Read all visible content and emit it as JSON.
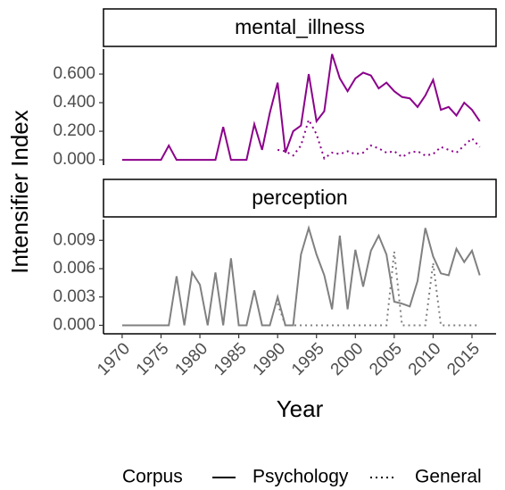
{
  "ylabel": "Intensifier Index",
  "xlabel": "Year",
  "legend": {
    "title": "Corpus"
  },
  "chart_data": [
    {
      "type": "line",
      "title": "mental_illness",
      "x": [
        1970,
        1971,
        1972,
        1973,
        1974,
        1975,
        1976,
        1977,
        1978,
        1979,
        1980,
        1981,
        1982,
        1983,
        1984,
        1985,
        1986,
        1987,
        1988,
        1989,
        1990,
        1991,
        1992,
        1993,
        1994,
        1995,
        1996,
        1997,
        1998,
        1999,
        2000,
        2001,
        2002,
        2003,
        2004,
        2005,
        2006,
        2007,
        2008,
        2009,
        2010,
        2011,
        2012,
        2013,
        2014,
        2015,
        2016
      ],
      "series": [
        {
          "name": "Psychology",
          "color": "#8b008b",
          "dash": "solid",
          "values": [
            0,
            0,
            0,
            0,
            0,
            0,
            0.1,
            0,
            0,
            0,
            0,
            0,
            0,
            0.23,
            0,
            0,
            0,
            0.25,
            0.07,
            0.33,
            0.54,
            0.05,
            0.2,
            0.24,
            0.6,
            0.27,
            0.34,
            0.74,
            0.57,
            0.48,
            0.57,
            0.61,
            0.59,
            0.5,
            0.54,
            0.48,
            0.44,
            0.43,
            0.37,
            0.45,
            0.56,
            0.35,
            0.37,
            0.31,
            0.4,
            0.35,
            0.27
          ]
        },
        {
          "name": "General",
          "color": "#8b008b",
          "dash": "dotted",
          "values": [
            null,
            null,
            null,
            null,
            null,
            null,
            null,
            null,
            null,
            null,
            null,
            null,
            null,
            null,
            null,
            null,
            null,
            null,
            null,
            null,
            0.07,
            0.06,
            0.03,
            0.1,
            0.28,
            0.18,
            0.01,
            0.05,
            0.04,
            0.06,
            0.04,
            0.05,
            0.1,
            0.08,
            0.05,
            0.06,
            0.02,
            0.05,
            0.06,
            0.03,
            0.04,
            0.09,
            0.07,
            0.05,
            0.1,
            0.15,
            0.09
          ]
        }
      ],
      "xlim": [
        1967.6,
        2018.1
      ],
      "ylim": [
        -0.037,
        0.775
      ],
      "yticks": [
        {
          "value": 0,
          "label": "0.000"
        },
        {
          "value": 0.2,
          "label": "0.200"
        },
        {
          "value": 0.4,
          "label": "0.400"
        },
        {
          "value": 0.6,
          "label": "0.600"
        }
      ]
    },
    {
      "type": "line",
      "title": "perception",
      "x": [
        1970,
        1971,
        1972,
        1973,
        1974,
        1975,
        1976,
        1977,
        1978,
        1979,
        1980,
        1981,
        1982,
        1983,
        1984,
        1985,
        1986,
        1987,
        1988,
        1989,
        1990,
        1991,
        1992,
        1993,
        1994,
        1995,
        1996,
        1997,
        1998,
        1999,
        2000,
        2001,
        2002,
        2003,
        2004,
        2005,
        2006,
        2007,
        2008,
        2009,
        2010,
        2011,
        2012,
        2013,
        2014,
        2015,
        2016
      ],
      "series": [
        {
          "name": "Psychology",
          "color": "#808080",
          "dash": "solid",
          "values": [
            0,
            0,
            0,
            0,
            0,
            0,
            0,
            0.0052,
            0,
            0.0056,
            0.0043,
            0,
            0.0056,
            0,
            0.0071,
            0,
            0,
            0.0037,
            0,
            0,
            0.003,
            0,
            0,
            0.0075,
            0.0103,
            0.0075,
            0.0053,
            0.0017,
            0.0095,
            0.0017,
            0.008,
            0.0041,
            0.0079,
            0.0095,
            0.0075,
            0.0025,
            0.0023,
            0.002,
            0.0047,
            0.0103,
            0.0073,
            0.0055,
            0.0053,
            0.0081,
            0.0067,
            0.0079,
            0.0053
          ]
        },
        {
          "name": "General",
          "color": "#808080",
          "dash": "dotted",
          "values": [
            null,
            null,
            null,
            null,
            null,
            null,
            null,
            null,
            null,
            null,
            null,
            null,
            null,
            null,
            null,
            null,
            null,
            null,
            null,
            null,
            0.0023,
            0,
            0,
            0,
            0,
            0,
            0,
            0,
            0,
            0,
            0,
            0,
            0,
            0,
            0,
            0.0078,
            0,
            0,
            0,
            0,
            0.0066,
            0,
            0,
            0,
            0,
            0,
            0
          ]
        }
      ],
      "xlim": [
        1967.6,
        2018.1
      ],
      "ylim": [
        -0.0009,
        0.0112
      ],
      "xticks": [
        1970,
        1975,
        1980,
        1985,
        1990,
        1995,
        2000,
        2005,
        2010,
        2015
      ],
      "yticks": [
        {
          "value": 0,
          "label": "0.000"
        },
        {
          "value": 0.003,
          "label": "0.003"
        },
        {
          "value": 0.006,
          "label": "0.006"
        },
        {
          "value": 0.009,
          "label": "0.009"
        }
      ]
    }
  ]
}
